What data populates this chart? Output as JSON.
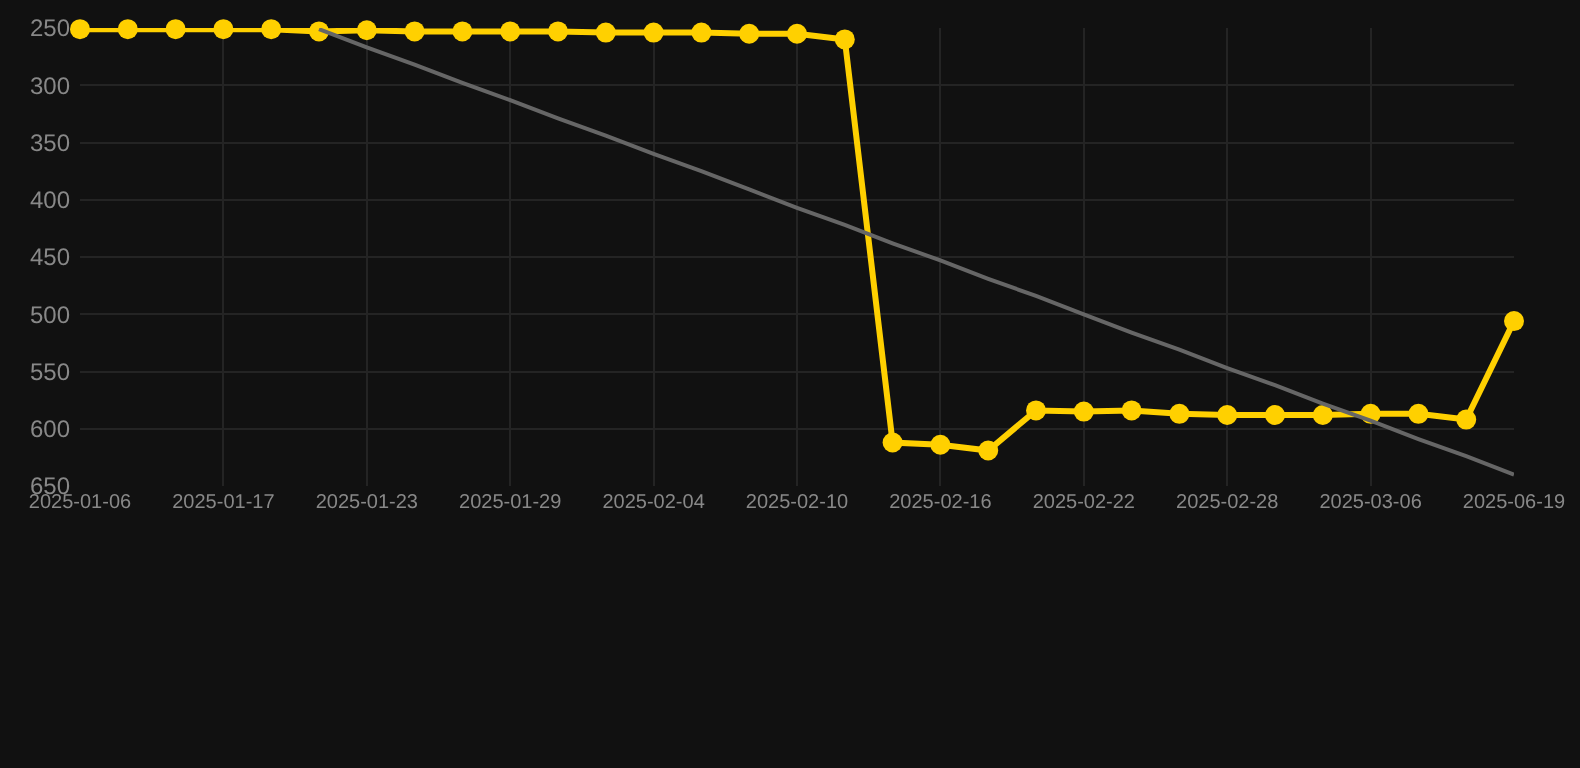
{
  "chart_data": {
    "type": "line",
    "categories": [
      "2025-01-06",
      null,
      null,
      "2025-01-17",
      null,
      null,
      "2025-01-23",
      null,
      null,
      "2025-01-29",
      null,
      null,
      "2025-02-04",
      null,
      null,
      "2025-02-10",
      null,
      null,
      "2025-02-16",
      null,
      null,
      "2025-02-22",
      null,
      null,
      "2025-02-28",
      null,
      null,
      "2025-03-06",
      null,
      null,
      "2025-06-19"
    ],
    "series": [
      {
        "color": "#ffd000",
        "marker": "circle",
        "values": [
          251,
          251,
          251,
          251,
          251,
          253,
          252,
          253,
          253,
          253,
          253,
          254,
          254,
          254,
          255,
          255,
          260,
          612,
          614,
          619,
          584,
          585,
          584,
          587,
          588,
          588,
          588,
          587,
          587,
          592,
          506
        ]
      },
      {
        "color": "#666666",
        "marker": "none",
        "values": [
          null,
          null,
          null,
          null,
          null,
          251,
          267,
          282,
          298,
          313,
          329,
          344,
          360,
          375,
          391,
          407,
          422,
          438,
          453,
          469,
          484,
          500,
          516,
          531,
          547,
          562,
          578,
          593,
          609,
          624,
          640
        ]
      }
    ],
    "ylim": [
      650,
      250
    ],
    "yticks": [
      250,
      300,
      350,
      400,
      450,
      500,
      550,
      600,
      650
    ],
    "grid": true,
    "line_style": "solid"
  }
}
